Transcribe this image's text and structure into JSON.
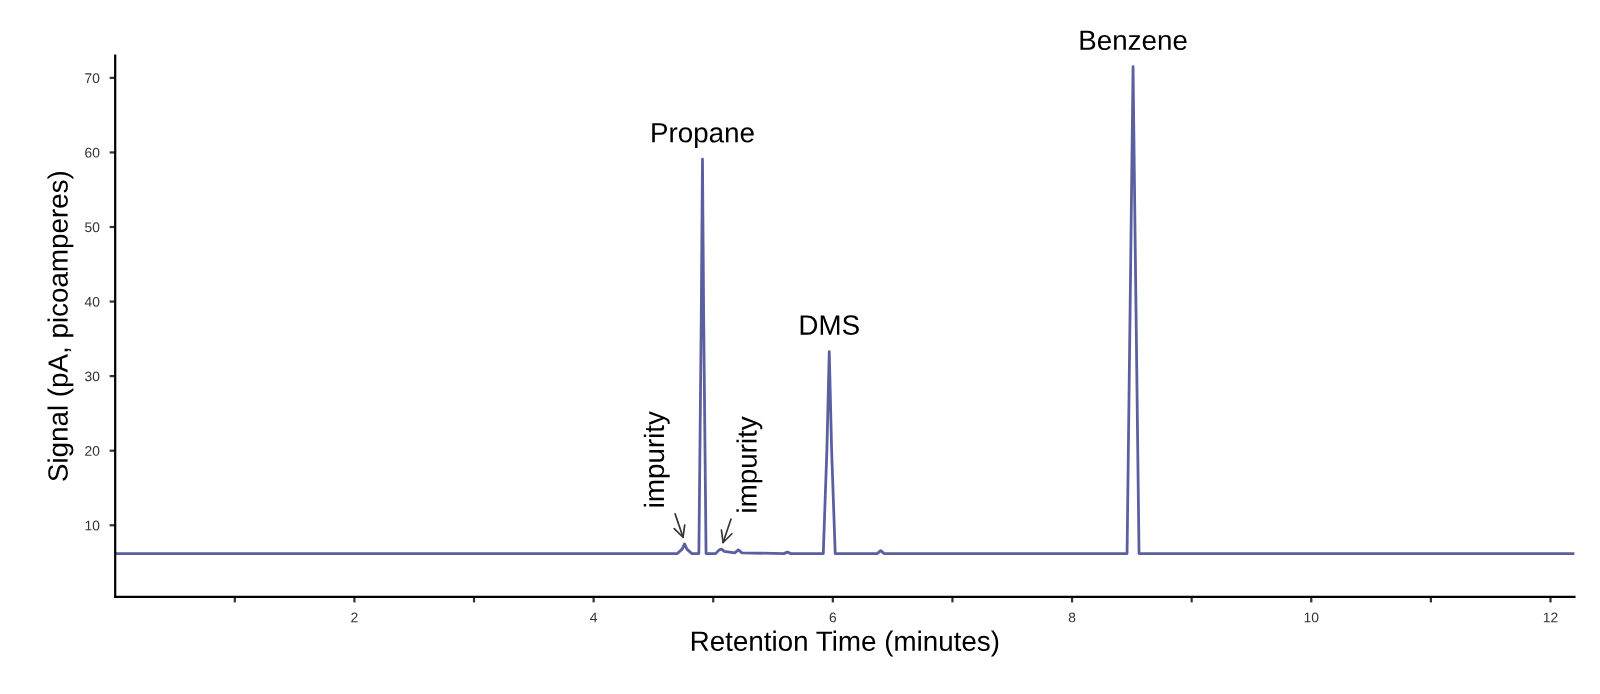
{
  "chart_data": {
    "type": "line",
    "xlabel": "Retention Time (minutes)",
    "ylabel": "Signal (pA, picoamperes)",
    "xlim": [
      0,
      12.2
    ],
    "ylim": [
      0.4,
      73
    ],
    "xticks": [
      {
        "value": 1,
        "label": null
      },
      2,
      {
        "value": 3,
        "label": null
      },
      4,
      {
        "value": 5,
        "label": null
      },
      6,
      {
        "value": 7,
        "label": null
      },
      8,
      {
        "value": 9,
        "label": null
      },
      10,
      {
        "value": 11,
        "label": null
      },
      12
    ],
    "yticks": [
      10,
      20,
      30,
      40,
      50,
      60,
      70
    ],
    "grid": false,
    "marker": "none",
    "line_style": "solid",
    "series": [
      {
        "color": "#5a5fa0",
        "x": [
          0,
          4.7,
          4.74,
          4.76,
          4.78,
          4.82,
          4.88,
          4.9,
          4.91,
          4.92,
          4.94,
          5.02,
          5.05,
          5.07,
          5.09,
          5.18,
          5.21,
          5.24,
          5.59,
          5.62,
          5.65,
          5.92,
          5.95,
          5.97,
          5.99,
          6.02,
          6.37,
          6.4,
          6.43,
          8.46,
          8.49,
          8.51,
          8.53,
          8.56,
          12.2
        ],
        "values": [
          6.2,
          6.2,
          6.8,
          7.5,
          6.8,
          6.2,
          6.2,
          38,
          59.1,
          38,
          6.2,
          6.2,
          6.7,
          6.8,
          6.5,
          6.3,
          6.7,
          6.3,
          6.2,
          6.4,
          6.2,
          6.2,
          20,
          33.3,
          20,
          6.2,
          6.2,
          6.6,
          6.2,
          6.2,
          45,
          71.5,
          45,
          6.2,
          6.2
        ]
      }
    ],
    "annotations": [
      {
        "text": "Propane",
        "x": 4.91,
        "y": 59.1
      },
      {
        "text": "DMS",
        "x": 5.97,
        "y": 33.3
      },
      {
        "text": "Benzene",
        "x": 8.51,
        "y": 71.5
      },
      {
        "text": "impurity",
        "x": 4.76,
        "y": 7.5
      },
      {
        "text": "impurity",
        "x": 5.07,
        "y": 6.8
      }
    ]
  }
}
